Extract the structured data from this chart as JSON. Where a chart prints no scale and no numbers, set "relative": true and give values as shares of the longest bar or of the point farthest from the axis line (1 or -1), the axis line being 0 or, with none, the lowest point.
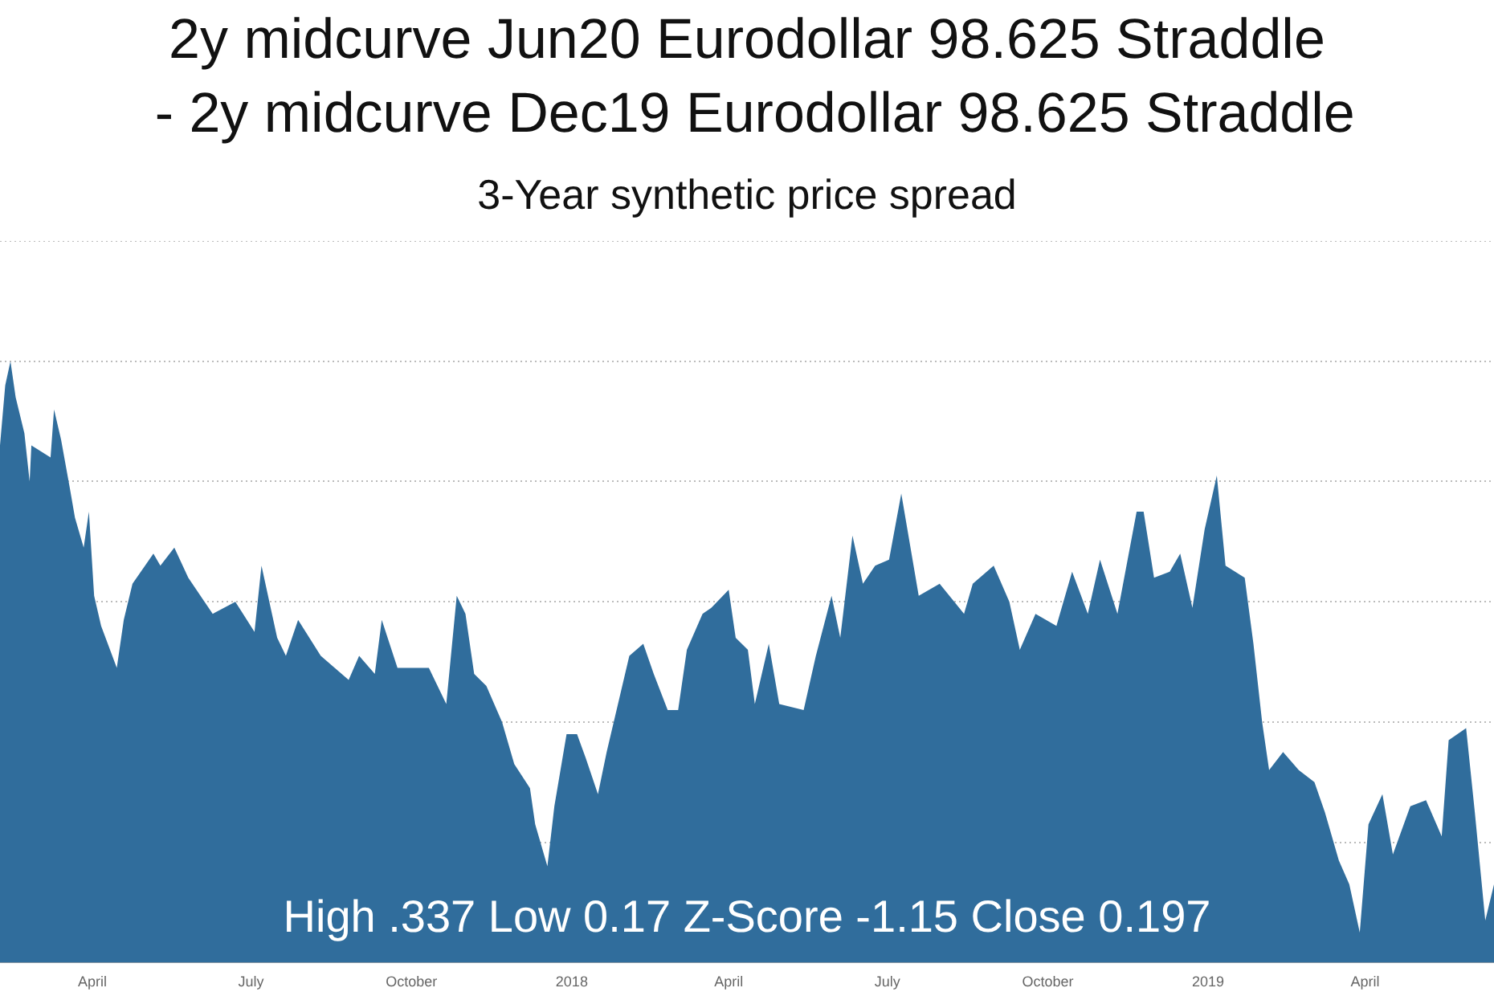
{
  "chart_data": {
    "type": "area",
    "title": "2y midcurve Jun20 Eurodollar 98.625 Straddle\n - 2y midcurve Dec19 Eurodollar 98.625 Straddle",
    "subtitle": "3-Year synthetic price spread",
    "relative": true,
    "grid": "y",
    "legend": false,
    "color": "#306d9c",
    "annotations": [
      "High .337 Low 0.17 Z-Score -1.15 Close 0.197"
    ],
    "xlim": [
      "2017-02-07",
      "2019-06-14"
    ],
    "xticks": [
      {
        "value": "2017-04-01",
        "label": "April"
      },
      {
        "value": "2017-07-01",
        "label": "July"
      },
      {
        "value": "2017-10-01",
        "label": "October"
      },
      {
        "value": "2018-01-01",
        "label": "2018"
      },
      {
        "value": "2018-04-01",
        "label": "April"
      },
      {
        "value": "2018-07-01",
        "label": "July"
      },
      {
        "value": "2018-10-01",
        "label": "October"
      },
      {
        "value": "2019-01-01",
        "label": "2019"
      },
      {
        "value": "2019-04-01",
        "label": "April"
      }
    ],
    "x": [
      "2017-02-07",
      "2017-02-10",
      "2017-02-13",
      "2017-02-16",
      "2017-02-21",
      "2017-02-24",
      "2017-02-25",
      "2017-03-08",
      "2017-03-10",
      "2017-03-14",
      "2017-03-19",
      "2017-03-22",
      "2017-03-27",
      "2017-03-30",
      "2017-04-02",
      "2017-04-06",
      "2017-04-15",
      "2017-04-19",
      "2017-04-24",
      "2017-05-06",
      "2017-05-10",
      "2017-05-18",
      "2017-05-26",
      "2017-06-09",
      "2017-06-22",
      "2017-07-03",
      "2017-07-07",
      "2017-07-16",
      "2017-07-21",
      "2017-07-28",
      "2017-08-10",
      "2017-08-26",
      "2017-09-01",
      "2017-09-10",
      "2017-09-14",
      "2017-09-23",
      "2017-10-11",
      "2017-10-21",
      "2017-10-27",
      "2017-11-01",
      "2017-11-06",
      "2017-11-13",
      "2017-11-22",
      "2017-11-29",
      "2017-12-08",
      "2017-12-11",
      "2017-12-18",
      "2017-12-22",
      "2017-12-29",
      "2018-01-04",
      "2018-01-09",
      "2018-01-16",
      "2018-01-21",
      "2018-02-03",
      "2018-02-11",
      "2018-02-17",
      "2018-02-25",
      "2018-03-03",
      "2018-03-08",
      "2018-03-17",
      "2018-03-22",
      "2018-04-01",
      "2018-04-05",
      "2018-04-12",
      "2018-04-16",
      "2018-04-24",
      "2018-04-30",
      "2018-05-14",
      "2018-05-21",
      "2018-05-30",
      "2018-06-04",
      "2018-06-11",
      "2018-06-17",
      "2018-06-24",
      "2018-07-02",
      "2018-07-09",
      "2018-07-19",
      "2018-07-31",
      "2018-08-14",
      "2018-08-19",
      "2018-08-31",
      "2018-09-09",
      "2018-09-15",
      "2018-09-24",
      "2018-10-06",
      "2018-10-15",
      "2018-10-24",
      "2018-10-31",
      "2018-11-10",
      "2018-11-21",
      "2018-11-25",
      "2018-12-01",
      "2018-12-10",
      "2018-12-16",
      "2018-12-23",
      "2018-12-30",
      "2019-01-06",
      "2019-01-11",
      "2019-01-22",
      "2019-01-27",
      "2019-02-01",
      "2019-02-05",
      "2019-02-13",
      "2019-02-22",
      "2019-03-03",
      "2019-03-09",
      "2019-03-17",
      "2019-03-23",
      "2019-03-29",
      "2019-04-03",
      "2019-04-11",
      "2019-04-17",
      "2019-04-27",
      "2019-05-06",
      "2019-05-15",
      "2019-05-19",
      "2019-05-29",
      "2019-06-03",
      "2019-06-09",
      "2019-06-14"
    ],
    "values": [
      0.86,
      0.96,
      1.0,
      0.94,
      0.88,
      0.8,
      0.86,
      0.84,
      0.92,
      0.87,
      0.79,
      0.74,
      0.69,
      0.75,
      0.61,
      0.56,
      0.49,
      0.57,
      0.63,
      0.68,
      0.66,
      0.69,
      0.64,
      0.58,
      0.6,
      0.55,
      0.66,
      0.54,
      0.51,
      0.57,
      0.51,
      0.47,
      0.51,
      0.48,
      0.57,
      0.49,
      0.49,
      0.43,
      0.61,
      0.58,
      0.48,
      0.46,
      0.4,
      0.33,
      0.29,
      0.23,
      0.16,
      0.26,
      0.38,
      0.38,
      0.34,
      0.28,
      0.35,
      0.51,
      0.53,
      0.48,
      0.42,
      0.42,
      0.52,
      0.58,
      0.59,
      0.62,
      0.54,
      0.52,
      0.43,
      0.53,
      0.43,
      0.42,
      0.51,
      0.61,
      0.54,
      0.71,
      0.63,
      0.66,
      0.67,
      0.78,
      0.61,
      0.63,
      0.58,
      0.63,
      0.66,
      0.6,
      0.52,
      0.58,
      0.56,
      0.65,
      0.58,
      0.67,
      0.58,
      0.75,
      0.75,
      0.64,
      0.65,
      0.68,
      0.59,
      0.72,
      0.81,
      0.66,
      0.64,
      0.53,
      0.4,
      0.32,
      0.35,
      0.32,
      0.3,
      0.25,
      0.17,
      0.13,
      0.05,
      0.23,
      0.28,
      0.18,
      0.26,
      0.27,
      0.21,
      0.37,
      0.39,
      0.25,
      0.07,
      0.13
    ]
  }
}
